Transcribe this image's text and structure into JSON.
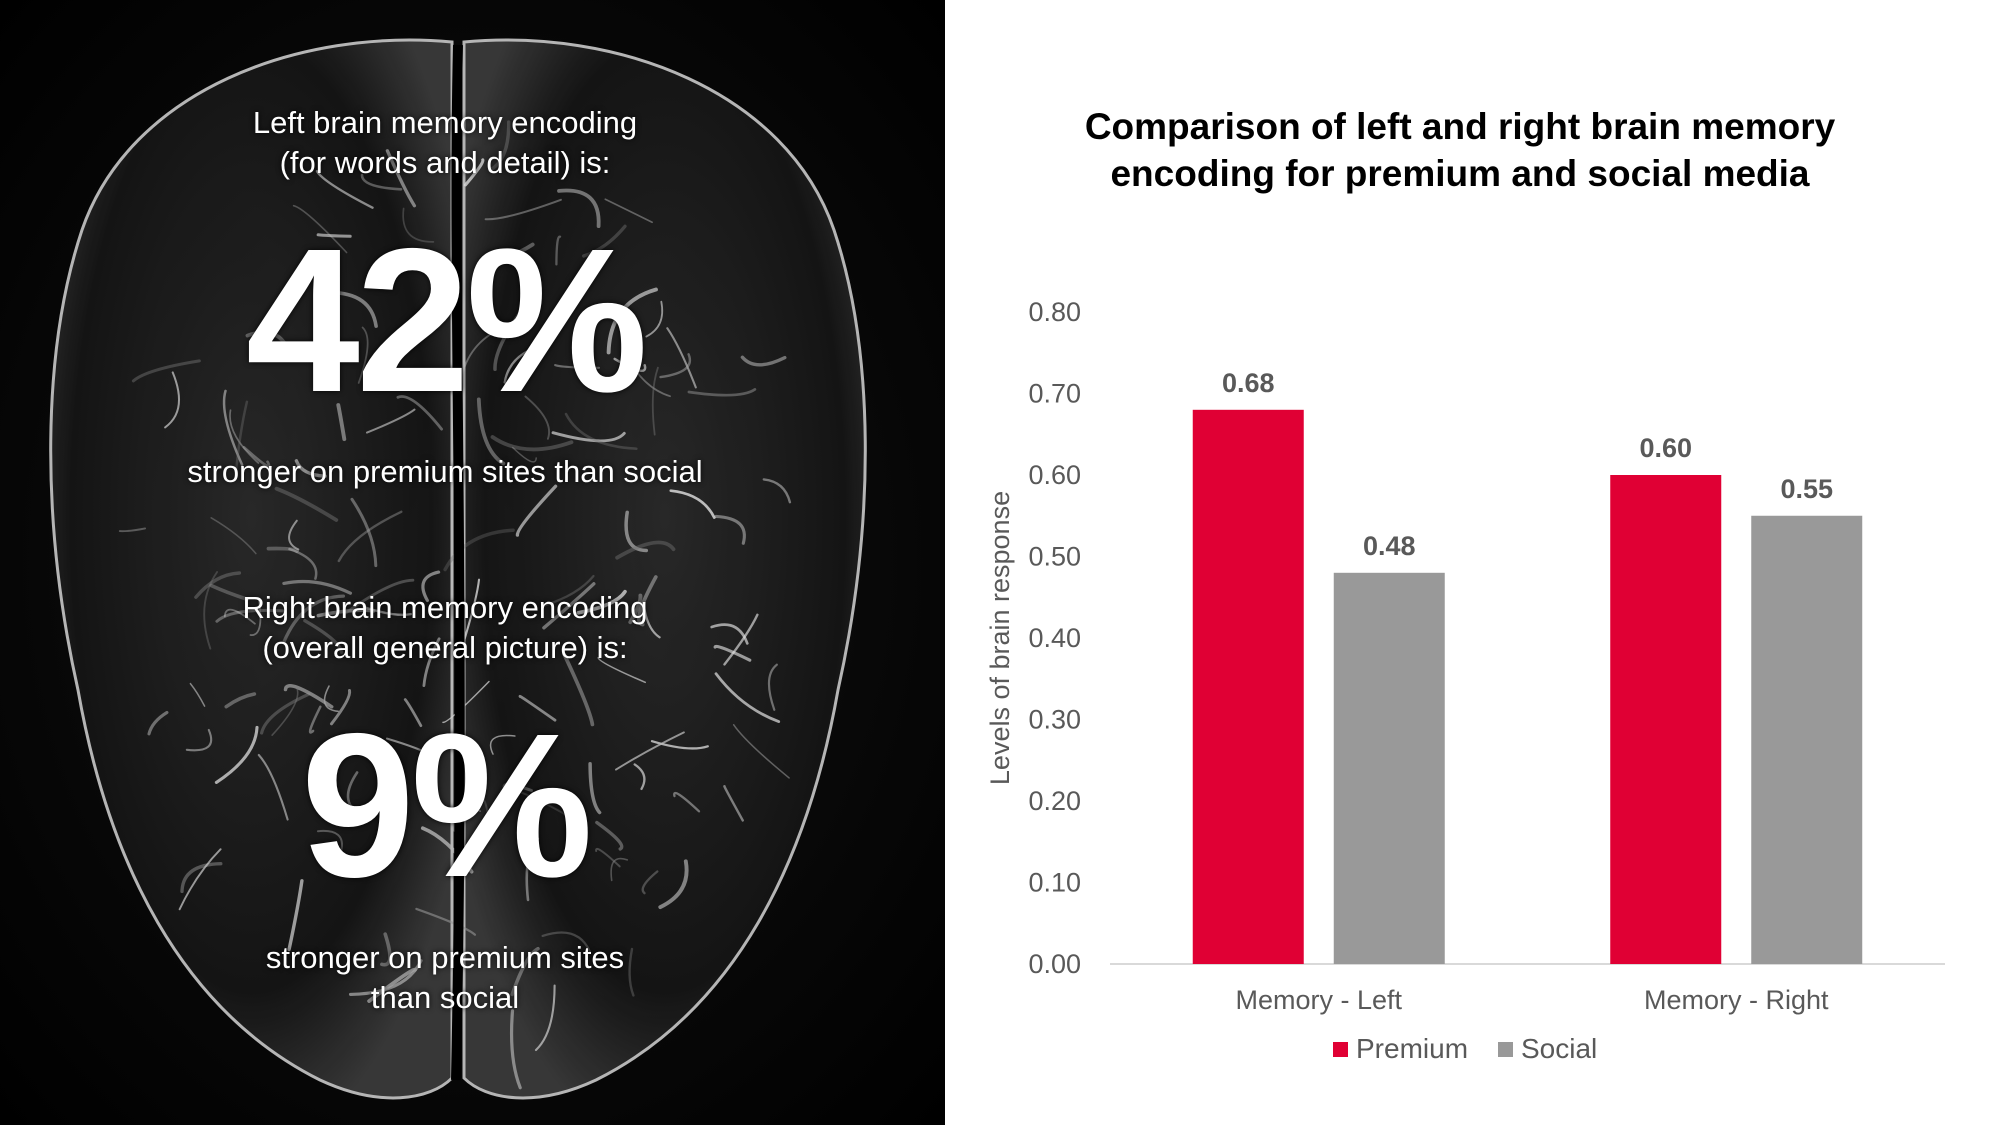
{
  "left_panel": {
    "left_intro": [
      "Left brain memory encoding",
      "(for words and detail) is:"
    ],
    "left_percent": "42%",
    "left_caption": "stronger on premium sites than social",
    "right_intro": [
      "Right brain memory encoding",
      "(overall general picture) is:"
    ],
    "right_percent": "9%",
    "right_caption": [
      "stronger on premium sites",
      "than social"
    ]
  },
  "chart_data": {
    "type": "bar",
    "title": [
      "Comparison of left and right brain memory",
      "encoding for premium and social media"
    ],
    "xlabel": "",
    "ylabel": "Levels of brain response",
    "categories": [
      "Memory - Left",
      "Memory - Right"
    ],
    "series": [
      {
        "name": "Premium",
        "values": [
          0.68,
          0.6
        ],
        "labels": [
          "0.68",
          "0.60"
        ],
        "color": "#e00034"
      },
      {
        "name": "Social",
        "values": [
          0.48,
          0.55
        ],
        "labels": [
          "0.48",
          "0.55"
        ],
        "color": "#999999"
      }
    ],
    "ylim": [
      0,
      0.8
    ],
    "yticks": [
      "0.00",
      "0.10",
      "0.20",
      "0.30",
      "0.40",
      "0.50",
      "0.60",
      "0.70",
      "0.80"
    ],
    "grid": false,
    "legend": "bottom"
  }
}
